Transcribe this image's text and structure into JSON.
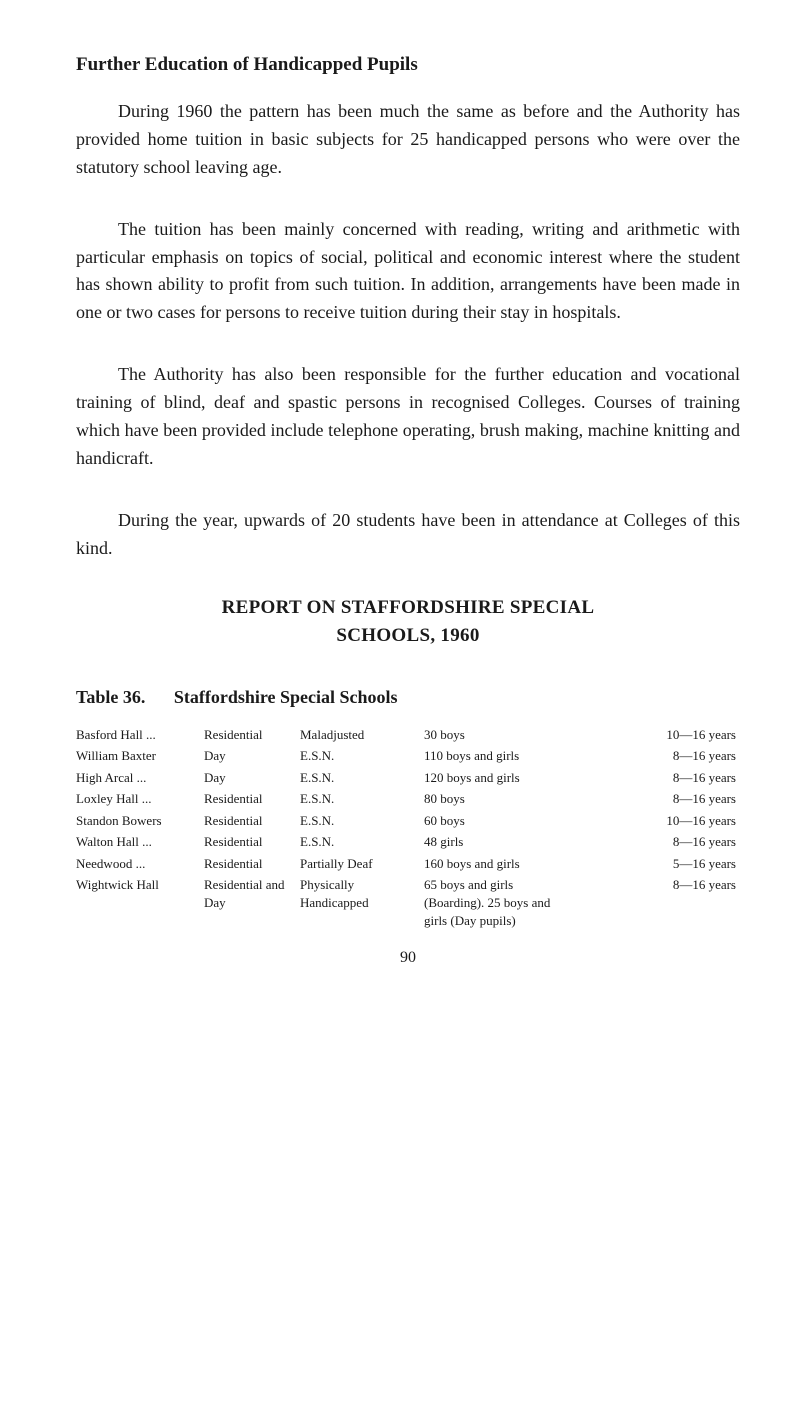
{
  "heading": "Further Education of Handicapped Pupils",
  "paragraphs": {
    "p1": "During 1960 the pattern has been much the same as before and the Authority has provided home tuition in basic subjects for 25 handicapped persons who were over the statutory school leaving age.",
    "p2": "The tuition has been mainly concerned with reading, writing and arithmetic with particular emphasis on topics of social, political and economic interest where the student has shown ability to profit from such tuition. In addition, arrangements have been made in one or two cases for persons to receive tuition during their stay in hospitals.",
    "p3": "The Authority has also been responsible for the further education and vocational training of blind, deaf and spastic persons in recognised Colleges. Courses of training which have been provided include telephone operating, brush making, machine knitting and handicraft.",
    "p4": "During the year, upwards of 20 students have been in attendance at Colleges of this kind."
  },
  "report": {
    "title_line1": "REPORT ON STAFFORDSHIRE SPECIAL",
    "title_line2": "SCHOOLS, 1960"
  },
  "table36": {
    "number": "Table 36.",
    "title": "Staffordshire Special Schools",
    "rows": [
      {
        "school": "Basford Hall ...",
        "type": "Residential",
        "category": "Maladjusted",
        "pupils": "30 boys",
        "ages": "10—16 years"
      },
      {
        "school": "William Baxter",
        "type": "Day",
        "category": "E.S.N.",
        "pupils": "110 boys and girls",
        "ages": "8—16 years"
      },
      {
        "school": "High Arcal   ...",
        "type": "Day",
        "category": "E.S.N.",
        "pupils": "120 boys and girls",
        "ages": "8—16 years"
      },
      {
        "school": "Loxley Hall  ...",
        "type": "Residential",
        "category": "E.S.N.",
        "pupils": "80 boys",
        "ages": "8—16 years"
      },
      {
        "school": "Standon Bowers",
        "type": "Residential",
        "category": "E.S.N.",
        "pupils": "60 boys",
        "ages": "10—16 years"
      },
      {
        "school": "Walton Hall  ...",
        "type": "Residential",
        "category": "E.S.N.",
        "pupils": "48 girls",
        "ages": "8—16 years"
      },
      {
        "school": "Needwood    ...",
        "type": "Residential",
        "category": "Partially Deaf",
        "pupils": "160 boys and girls",
        "ages": "5—16 years"
      },
      {
        "school": "Wightwick Hall",
        "type": "Residential and Day",
        "category": "Physically Handicapped",
        "pupils": "65 boys and girls (Boarding). 25 boys and girls (Day pupils)",
        "ages": "8—16 years"
      }
    ]
  },
  "page_number": "90"
}
